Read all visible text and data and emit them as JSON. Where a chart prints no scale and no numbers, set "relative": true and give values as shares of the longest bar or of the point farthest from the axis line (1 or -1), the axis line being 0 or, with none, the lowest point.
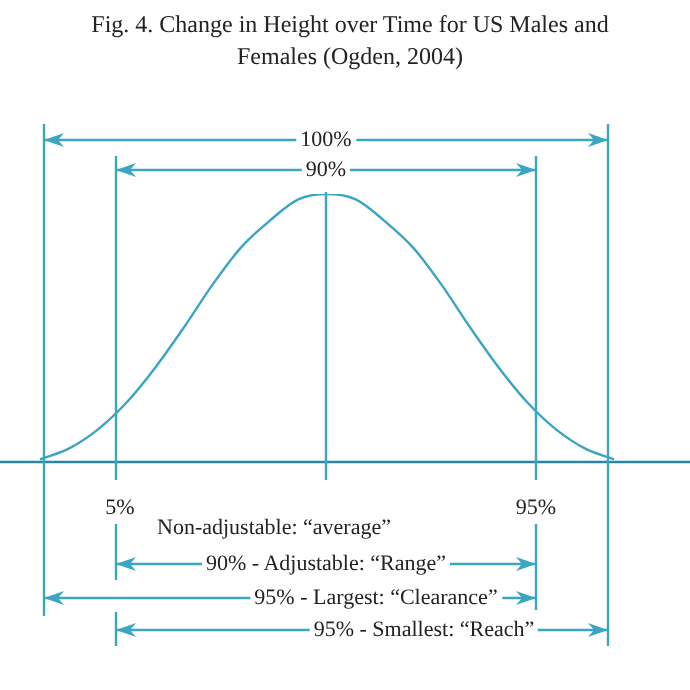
{
  "chart_data": {
    "type": "line",
    "title": "Fig. 4. Change in Height over Time for US Males and Females (Ogden, 2004)",
    "categories": [
      null,
      null,
      null,
      null,
      null,
      null,
      null,
      null,
      null,
      null,
      null,
      null,
      null,
      null,
      null,
      null,
      null,
      null,
      null,
      null,
      null
    ],
    "relative": true,
    "marker": "none",
    "line_style": "solid",
    "legend": false,
    "series": [
      {
        "color": "#3aa5c3",
        "values": [
          0.01,
          0.05,
          0.12,
          0.22,
          0.35,
          0.5,
          0.66,
          0.8,
          0.9,
          0.98,
          1,
          0.98,
          0.9,
          0.8,
          0.66,
          0.5,
          0.35,
          0.22,
          0.12,
          0.05,
          0.01
        ]
      }
    ],
    "annotations": [
      "100%",
      "90%",
      "5%",
      "95%",
      "Non-adjustable: “average”",
      "90% - Adjustable: “Range”",
      "95% - Largest: “Clearance”",
      "95% - Smallest: “Reach”"
    ]
  }
}
